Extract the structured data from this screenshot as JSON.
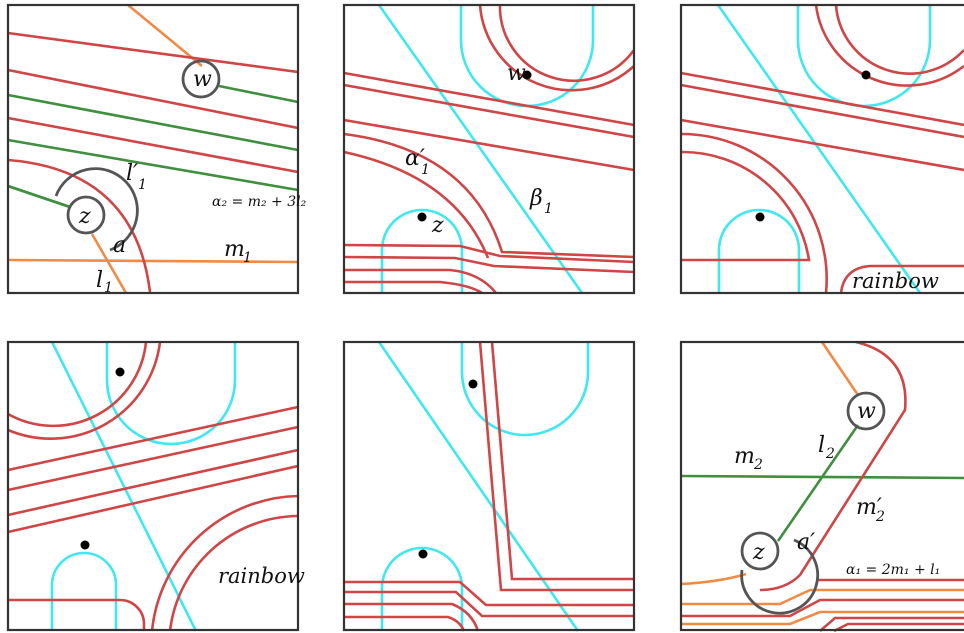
{
  "colors": {
    "curve": "#d04545",
    "arc_l2": "#3f8f3f",
    "arc_l1": "#f08a45",
    "beta": "#3fe8f0",
    "frame": "#333333"
  },
  "panels": [
    {
      "labels": {
        "w": "w",
        "z": "z",
        "l1_prime": "l′",
        "l1_prime_sub": "1",
        "a": "a",
        "m1": "m",
        "m1_sub": "1",
        "l1": "l",
        "l1_sub": "1",
        "alpha2_formula": "α₂ = m₂ + 3l₂"
      }
    },
    {
      "labels": {
        "w": "w",
        "z": "z",
        "alpha1_prime": "α′",
        "alpha1_prime_sub": "1",
        "beta1": "β",
        "beta1_sub": "1"
      }
    },
    {
      "labels": {
        "rainbow": "rainbow"
      }
    },
    {
      "labels": {
        "rainbow": "rainbow"
      }
    },
    {
      "labels": {}
    },
    {
      "labels": {
        "w": "w",
        "z": "z",
        "m2": "m",
        "m2_sub": "2",
        "l2": "l",
        "l2_sub": "2",
        "m2_prime": "m′",
        "m2_prime_sub": "2",
        "a_prime": "a′",
        "alpha1_formula": "α₁ = 2m₁ + l₁"
      }
    }
  ]
}
